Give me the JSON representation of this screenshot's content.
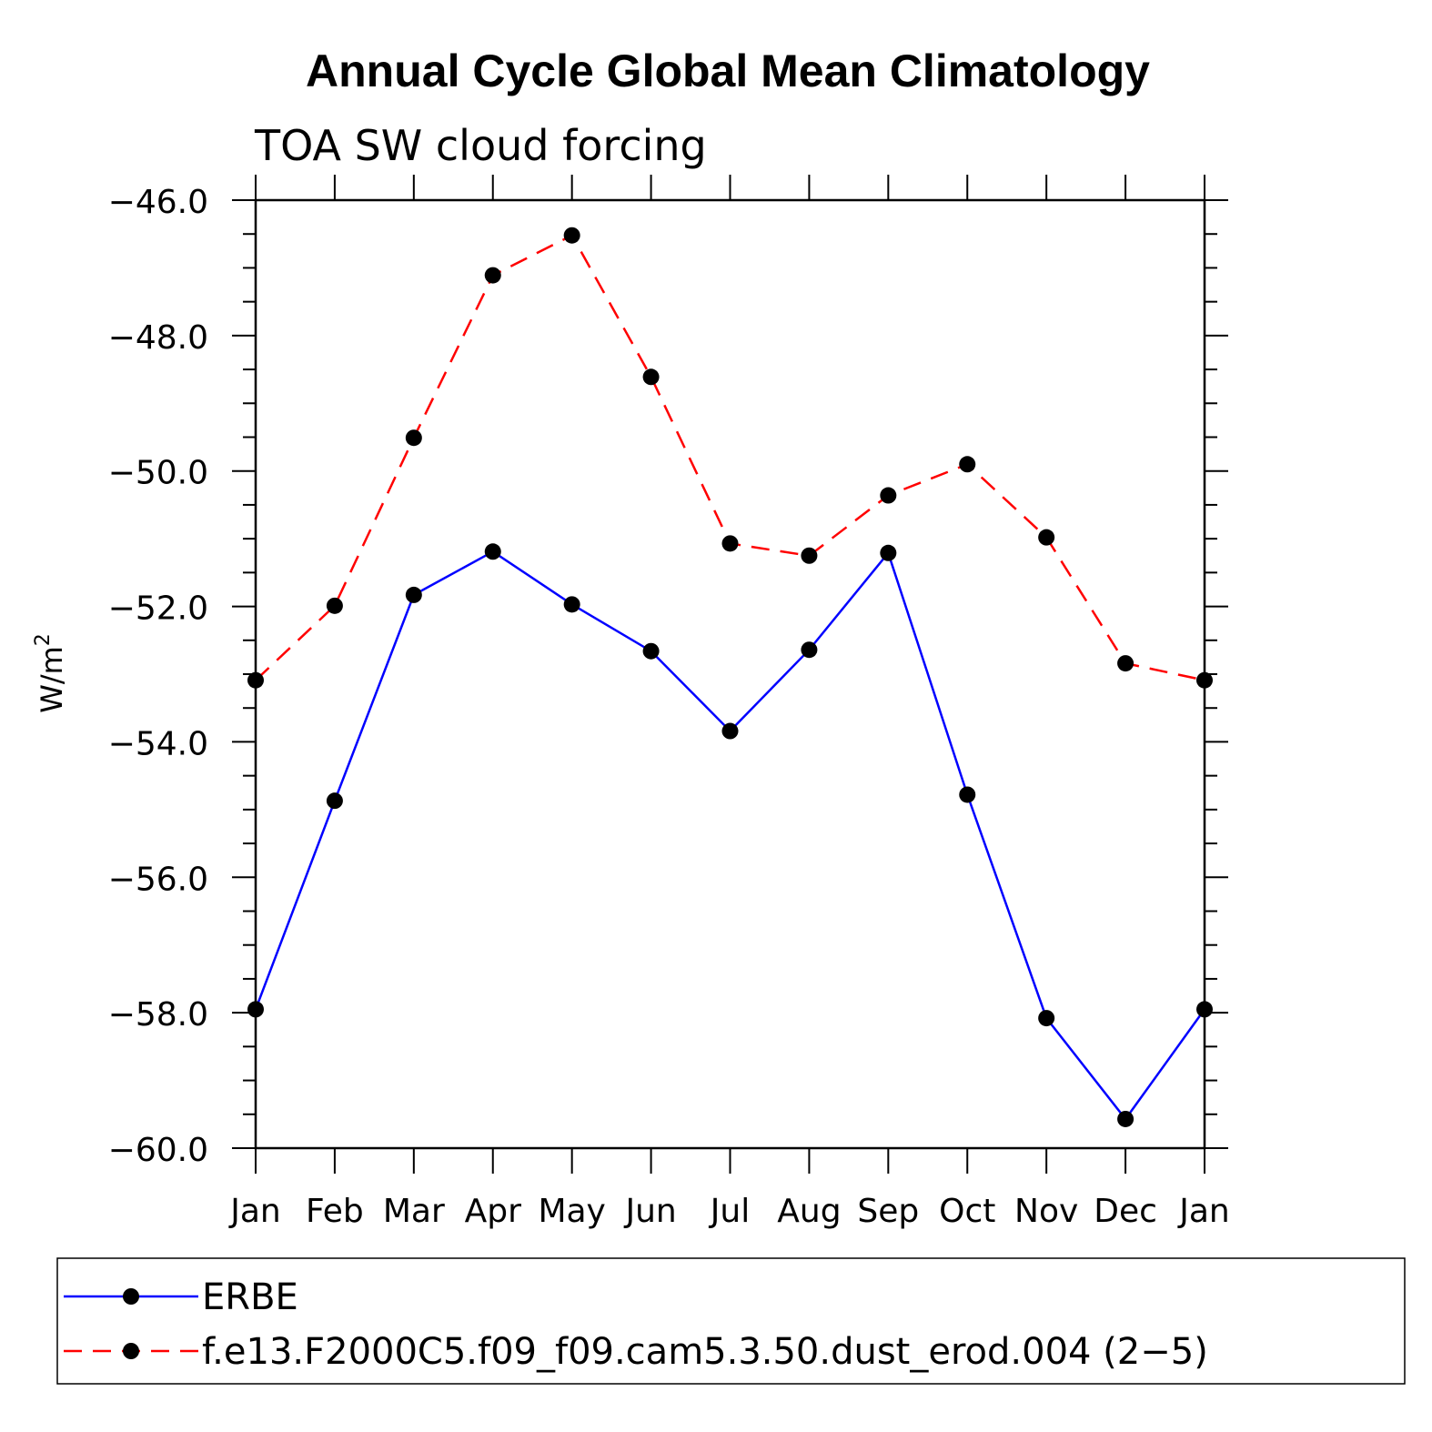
{
  "chart_data": {
    "type": "line",
    "title": "Annual Cycle Global Mean Climatology",
    "subtitle": "TOA SW cloud forcing",
    "ylabel": "W/m",
    "ylabel_sup": "2",
    "xlabel": "",
    "categories": [
      "Jan",
      "Feb",
      "Mar",
      "Apr",
      "May",
      "Jun",
      "Jul",
      "Aug",
      "Sep",
      "Oct",
      "Nov",
      "Dec",
      "Jan"
    ],
    "ylim": [
      -60.0,
      -46.0
    ],
    "yticks": [
      -46.0,
      -48.0,
      -50.0,
      -52.0,
      -54.0,
      -56.0,
      -58.0,
      -60.0
    ],
    "ytick_labels": [
      "−46.0",
      "−48.0",
      "−50.0",
      "−52.0",
      "−54.0",
      "−56.0",
      "−58.0",
      "−60.0"
    ],
    "series": [
      {
        "name": "ERBE",
        "color": "#0000ff",
        "dash": "solid",
        "values": [
          -57.95,
          -54.87,
          -51.83,
          -51.19,
          -51.97,
          -52.66,
          -53.84,
          -52.64,
          -51.21,
          -54.78,
          -58.08,
          -59.57,
          -57.95
        ]
      },
      {
        "name": "f.e13.F2000C5.f09_f09.cam5.3.50.dust_erod.004 (2−5)",
        "color": "#ff0000",
        "dash": "dashed",
        "values": [
          -53.09,
          -51.99,
          -49.51,
          -47.11,
          -46.52,
          -48.61,
          -51.07,
          -51.25,
          -50.36,
          -49.9,
          -50.98,
          -52.84,
          -53.09
        ]
      }
    ],
    "legend_position": "bottom",
    "grid": false
  }
}
